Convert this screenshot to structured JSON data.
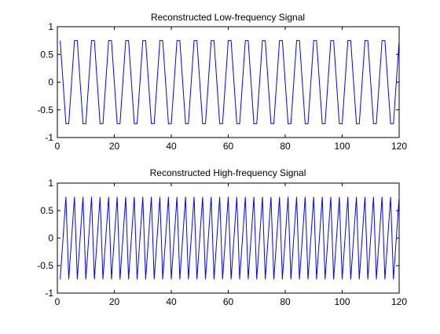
{
  "window": {
    "background": "#ffffff"
  },
  "chart_data": [
    {
      "type": "line",
      "title": "Reconstructed Low-frequency Signal",
      "xlabel": "",
      "ylabel": "",
      "xlim": [
        0,
        120
      ],
      "ylim": [
        -1,
        1
      ],
      "xticks": [
        0,
        20,
        40,
        60,
        80,
        100,
        120
      ],
      "yticks": [
        1,
        0.5,
        0,
        -0.5,
        -1
      ],
      "xtick_labels": [
        "0",
        "20",
        "40",
        "60",
        "80",
        "100",
        "120"
      ],
      "ytick_labels": [
        "1",
        "0.5",
        "0",
        "-0.5",
        "-1"
      ],
      "grid": false,
      "series": [
        {
          "color": "#0000ff",
          "sample_step": 1,
          "period": 6,
          "amplitude": 0.866,
          "x_start": 1,
          "x_end": 120,
          "phase_deg": 60,
          "function": "sin"
        }
      ]
    },
    {
      "type": "line",
      "title": "Reconstructed High-frequency Signal",
      "xlabel": "",
      "ylabel": "",
      "xlim": [
        0,
        120
      ],
      "ylim": [
        -1,
        1
      ],
      "xticks": [
        0,
        20,
        40,
        60,
        80,
        100,
        120
      ],
      "yticks": [
        1,
        0.5,
        0,
        -0.5,
        -1
      ],
      "xtick_labels": [
        "0",
        "20",
        "40",
        "60",
        "80",
        "100",
        "120"
      ],
      "ytick_labels": [
        "1",
        "0.5",
        "0",
        "-0.5",
        "-1"
      ],
      "grid": false,
      "series": [
        {
          "color": "#0000ff",
          "sample_step": 1,
          "period": 3,
          "amplitude": 0.866,
          "x_start": 1,
          "x_end": 120,
          "phase_deg": 120,
          "function": "sin"
        }
      ]
    }
  ]
}
